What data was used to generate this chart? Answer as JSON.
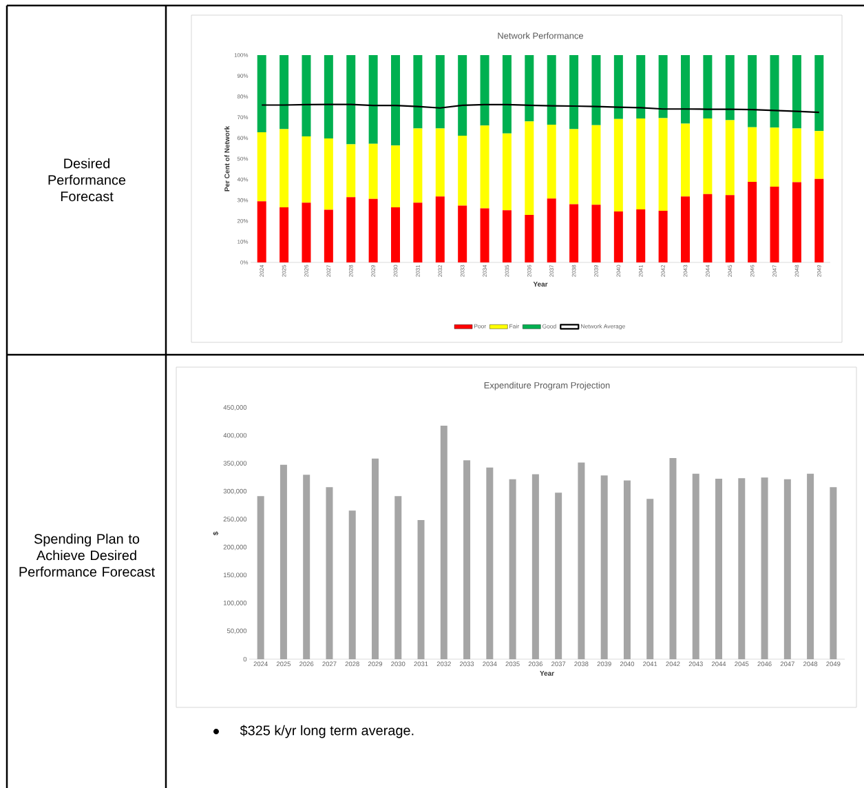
{
  "chart_data": [
    {
      "type": "bar",
      "title": "Network Performance",
      "xlabel": "Year",
      "ylabel": "Per Cent of Network",
      "stacked": true,
      "legend": "bottom",
      "categories": [
        "2024",
        "2025",
        "2026",
        "2027",
        "2028",
        "2029",
        "2030",
        "2031",
        "2032",
        "2033",
        "2034",
        "2035",
        "2036",
        "2037",
        "2038",
        "2039",
        "2040",
        "2041",
        "2042",
        "2043",
        "2044",
        "2045",
        "2046",
        "2047",
        "2048",
        "2049"
      ],
      "ylim": [
        0,
        100
      ],
      "yticks": [
        {
          "value": 0,
          "label": "0%"
        },
        {
          "value": 10,
          "label": "10%"
        },
        {
          "value": 20,
          "label": "20%"
        },
        {
          "value": 30,
          "label": "30%"
        },
        {
          "value": 40,
          "label": "40%"
        },
        {
          "value": 50,
          "label": "50%"
        },
        {
          "value": 60,
          "label": "60%"
        },
        {
          "value": 70,
          "label": "70%"
        },
        {
          "value": 80,
          "label": "80%"
        },
        {
          "value": 90,
          "label": "90%"
        },
        {
          "value": 100,
          "label": "100%"
        }
      ],
      "series": [
        {
          "name": "Poor",
          "color": "#ff0000",
          "values": [
            29.5,
            26.6,
            28.8,
            25.4,
            31.5,
            30.6,
            26.6,
            28.8,
            31.8,
            27.4,
            26.1,
            25.2,
            22.9,
            30.8,
            28.1,
            27.8,
            24.6,
            25.6,
            24.9,
            31.8,
            33.0,
            32.5,
            38.9,
            36.5,
            38.7,
            40.3
          ]
        },
        {
          "name": "Fair",
          "color": "#ffff00",
          "values": [
            33.3,
            37.7,
            32.0,
            34.4,
            25.5,
            26.6,
            29.8,
            35.8,
            32.8,
            33.7,
            39.9,
            37.0,
            45.1,
            35.6,
            36.2,
            38.4,
            44.6,
            43.8,
            44.7,
            35.1,
            36.4,
            36.1,
            26.3,
            28.5,
            25.9,
            23.1
          ]
        },
        {
          "name": "Good",
          "color": "#00b050",
          "values": [
            37.2,
            35.7,
            39.2,
            40.2,
            43.0,
            42.8,
            43.6,
            35.4,
            35.4,
            38.9,
            34.0,
            37.8,
            32.0,
            33.6,
            35.7,
            33.8,
            30.8,
            30.6,
            30.4,
            33.1,
            30.6,
            31.4,
            34.8,
            35.0,
            35.4,
            36.6
          ]
        },
        {
          "name": "Network Average",
          "type": "line",
          "color": "#000000",
          "values": [
            75.9,
            75.9,
            76.1,
            76.2,
            76.2,
            75.7,
            75.7,
            75.2,
            74.5,
            75.8,
            76.1,
            76.1,
            75.8,
            75.5,
            75.4,
            75.2,
            74.9,
            74.6,
            74.0,
            74.0,
            73.9,
            73.9,
            73.7,
            73.3,
            72.9,
            72.4
          ]
        }
      ]
    },
    {
      "type": "bar",
      "title": "Expenditure Program Projection",
      "xlabel": "Year",
      "ylabel": "$",
      "categories": [
        "2024",
        "2025",
        "2026",
        "2027",
        "2028",
        "2029",
        "2030",
        "2031",
        "2032",
        "2033",
        "2034",
        "2035",
        "2036",
        "2037",
        "2038",
        "2039",
        "2040",
        "2041",
        "2042",
        "2043",
        "2044",
        "2045",
        "2046",
        "2047",
        "2048",
        "2049"
      ],
      "ylim": [
        0,
        450000
      ],
      "yticks": [
        0,
        {
          "value": 50000,
          "label": "50,000"
        },
        {
          "value": 100000,
          "label": "100,000"
        },
        {
          "value": 150000,
          "label": "150,000"
        },
        {
          "value": 200000,
          "label": "200,000"
        },
        {
          "value": 250000,
          "label": "250,000"
        },
        {
          "value": 300000,
          "label": "300,000"
        },
        {
          "value": 350000,
          "label": "350,000"
        },
        {
          "value": 400000,
          "label": "400,000"
        },
        {
          "value": 450000,
          "label": "450,000"
        }
      ],
      "series": [
        {
          "color": "#a5a5a5",
          "values": [
            292000,
            348000,
            330000,
            308000,
            266000,
            359000,
            292000,
            249000,
            418000,
            356000,
            343000,
            322000,
            331000,
            298000,
            352000,
            329000,
            320000,
            287000,
            360000,
            332000,
            323000,
            324000,
            325000,
            322000,
            332000,
            308000
          ]
        }
      ],
      "annotations": [
        "$325 k/yr long term average."
      ]
    },
    {
      "type": "other",
      "annotations": [
        "Desired Performance Forecast",
        "Spending Plan to Achieve Desired Performance Forecast"
      ]
    }
  ]
}
